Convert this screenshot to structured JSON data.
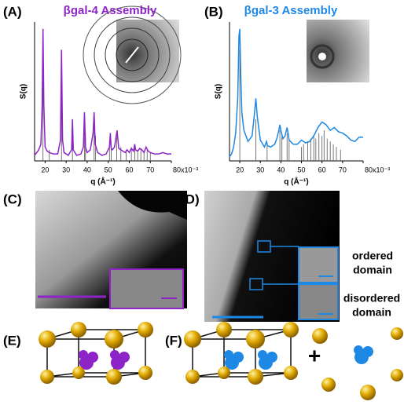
{
  "panels": [
    "(A)",
    "(B)",
    "(C)",
    "(D)",
    "(E)",
    "(F)"
  ],
  "annotations": {
    "ordered": [
      "ordered",
      "domain"
    ],
    "disordered": [
      "disordered",
      "domain"
    ],
    "plus": "+"
  },
  "chart_data": [
    {
      "type": "line",
      "title": "βgal-4 Assembly",
      "x_label": "q (Å⁻¹)",
      "y_label": "S(q)",
      "xlim": [
        15,
        80
      ],
      "ylim": [
        0,
        100
      ],
      "xticks": [
        20,
        30,
        40,
        50,
        60,
        70,
        {
          "value": 80,
          "label": "80x10⁻³"
        }
      ],
      "color": "#8e24c8",
      "x": [
        15,
        16,
        17,
        18,
        18.6,
        19,
        19.4,
        20,
        21,
        22,
        24,
        26,
        27.3,
        27.8,
        28.3,
        29,
        31,
        32.6,
        33,
        33.4,
        35,
        37,
        38.2,
        38.7,
        39.2,
        40,
        41.5,
        42.8,
        43.3,
        43.8,
        45,
        47,
        49,
        50.6,
        51,
        51.4,
        52,
        53,
        53.8,
        54.2,
        55,
        56,
        57,
        58,
        59,
        60,
        61,
        62,
        62.6,
        63,
        64,
        65,
        66,
        67,
        68,
        69,
        70,
        72,
        74,
        76,
        78,
        80
      ],
      "values": [
        4,
        6,
        8,
        12,
        40,
        95,
        40,
        10,
        7,
        6,
        5,
        5,
        15,
        80,
        15,
        6,
        4,
        8,
        30,
        8,
        4,
        5,
        10,
        35,
        10,
        6,
        8,
        20,
        35,
        12,
        6,
        4,
        5,
        10,
        20,
        9,
        8,
        10,
        18,
        22,
        9,
        8,
        7,
        6,
        8,
        6,
        9,
        7,
        12,
        8,
        7,
        9,
        8,
        6,
        10,
        7,
        6,
        5,
        5,
        6,
        5,
        5
      ],
      "sticks": {
        "color": "#555555",
        "x": [
          19,
          22,
          27.8,
          33,
          38.7,
          39.2,
          43.3,
          44,
          50.6,
          51.4,
          54,
          56,
          58.5,
          61,
          62.6,
          64,
          65.5,
          67,
          68.5,
          70
        ],
        "values": [
          90,
          8,
          75,
          25,
          30,
          20,
          32,
          18,
          15,
          12,
          18,
          10,
          8,
          10,
          12,
          8,
          8,
          6,
          8,
          6
        ]
      }
    },
    {
      "type": "line",
      "title": "βgal-3 Assembly",
      "x_label": "q (Å⁻¹)",
      "y_label": "S(q)",
      "xlim": [
        15,
        80
      ],
      "ylim": [
        0,
        100
      ],
      "xticks": [
        20,
        30,
        40,
        50,
        60,
        70,
        {
          "value": 80,
          "label": "80x10⁻³"
        }
      ],
      "color": "#1e88e5",
      "x": [
        15,
        16,
        17,
        18,
        19,
        19.6,
        20,
        20.5,
        21,
        22,
        24,
        26,
        27,
        27.8,
        28.5,
        30,
        32,
        33,
        33.5,
        35,
        37,
        38,
        39,
        39.5,
        40,
        41,
        42,
        43,
        43.5,
        44,
        46,
        48,
        50,
        52,
        54,
        56,
        58,
        60,
        62,
        64,
        66,
        68,
        70,
        72,
        74,
        76,
        78,
        80
      ],
      "values": [
        3,
        5,
        10,
        20,
        45,
        90,
        95,
        60,
        35,
        22,
        14,
        18,
        32,
        45,
        32,
        15,
        10,
        14,
        11,
        10,
        12,
        16,
        22,
        26,
        22,
        16,
        18,
        24,
        20,
        15,
        12,
        12,
        15,
        13,
        14,
        18,
        24,
        28,
        26,
        22,
        24,
        21,
        20,
        18,
        15,
        14,
        17,
        17
      ],
      "sticks": {
        "color": "#555555",
        "x": [
          20,
          27.8,
          33.3,
          39.5,
          40.5,
          43,
          44,
          50,
          51,
          53,
          54.5,
          56,
          57,
          58.5,
          60,
          61,
          62.5,
          64,
          65.5,
          67,
          69
        ],
        "values": [
          80,
          30,
          12,
          22,
          18,
          20,
          16,
          10,
          12,
          14,
          16,
          18,
          16,
          20,
          18,
          22,
          16,
          14,
          12,
          10,
          8
        ]
      }
    }
  ]
}
